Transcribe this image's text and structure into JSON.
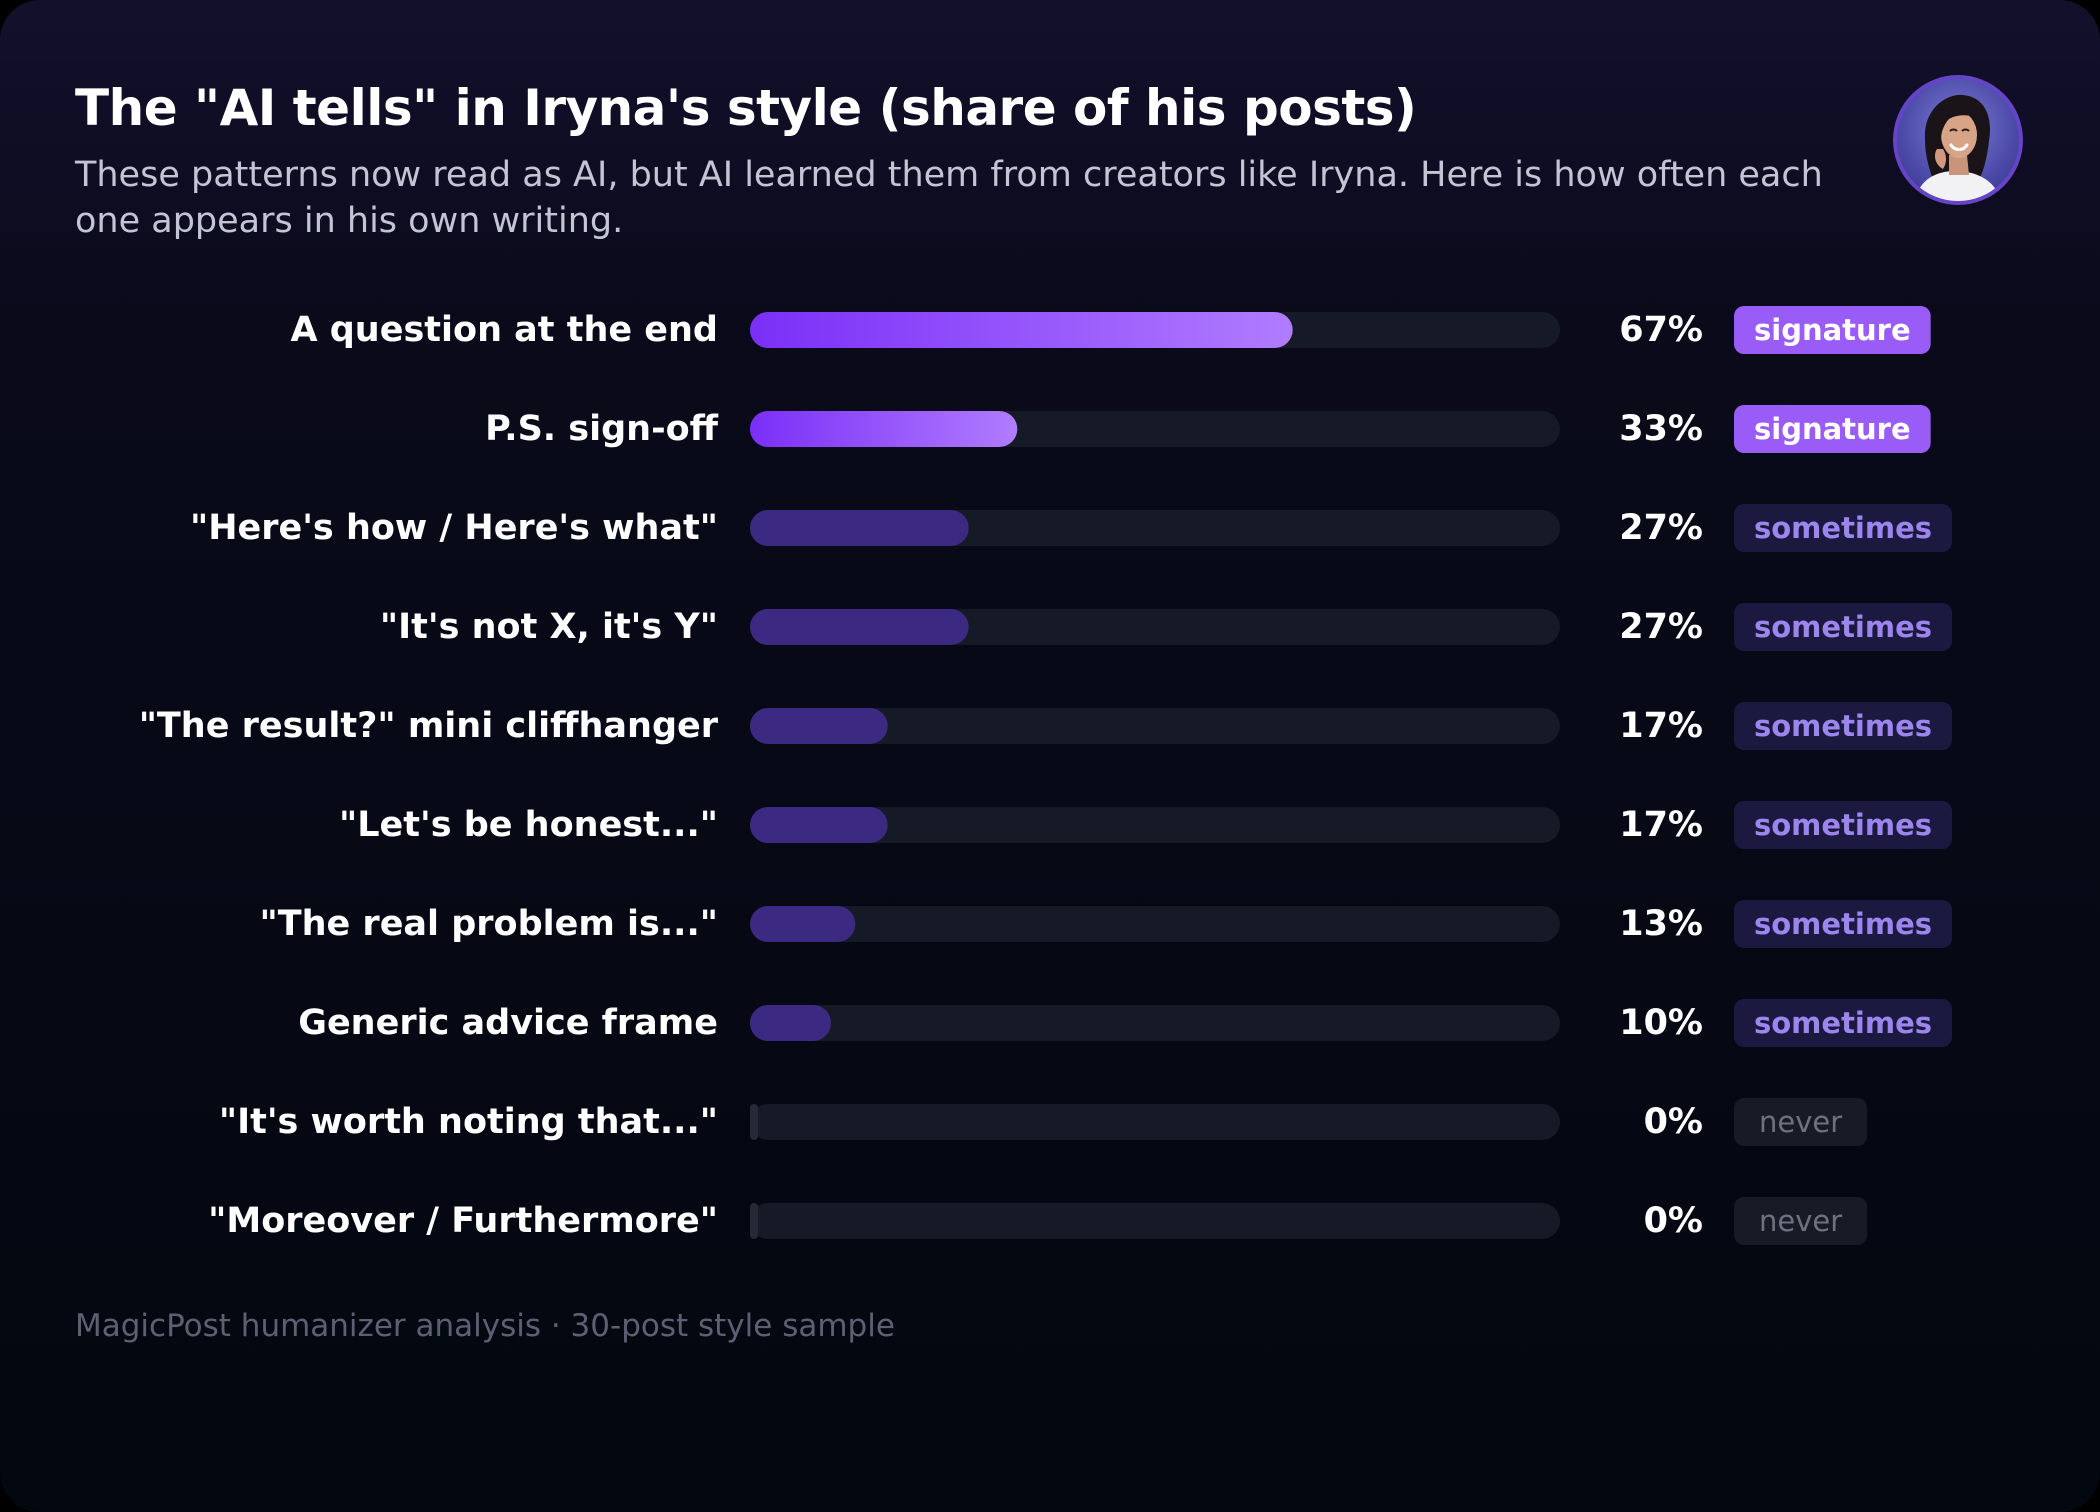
{
  "title": "The \"AI tells\" in Iryna's style (share of his posts)",
  "subtitle": "These patterns now read as AI, but AI learned them from creators like Iryna. Here is how often each one appears in his own writing.",
  "footer": "MagicPost humanizer analysis · 30-post style sample",
  "avatar_icon": "profile-photo-icon",
  "colors": {
    "signature_bar_start": "#7b2ff7",
    "signature_bar_end": "#b07cff",
    "sometimes_bar": "#3c2a82",
    "track": "#161a26",
    "signature_badge": "#9a5cf6",
    "sometimes_badge_bg": "#1b1940",
    "sometimes_badge_text": "#9c86ee",
    "never_badge_bg": "#181b25",
    "never_badge_text": "#6d7180"
  },
  "chart_data": {
    "type": "bar",
    "orientation": "horizontal",
    "value_unit": "%",
    "xlim": [
      0,
      100
    ],
    "grid": false,
    "title": "The \"AI tells\" in Iryna's style (share of his posts)",
    "categories": [
      "A question at the end",
      "P.S. sign-off",
      "\"Here's how / Here's what\"",
      "\"It's not X, it's Y\"",
      "\"The result?\" mini cliffhanger",
      "\"Let's be honest...\"",
      "\"The real problem is...\"",
      "Generic advice frame",
      "\"It's worth noting that...\"",
      "\"Moreover / Furthermore\""
    ],
    "values": [
      67,
      33,
      27,
      27,
      17,
      17,
      13,
      10,
      0,
      0
    ],
    "value_labels": [
      "67%",
      "33%",
      "27%",
      "27%",
      "17%",
      "17%",
      "13%",
      "10%",
      "0%",
      "0%"
    ],
    "tiers": [
      "signature",
      "signature",
      "sometimes",
      "sometimes",
      "sometimes",
      "sometimes",
      "sometimes",
      "sometimes",
      "never",
      "never"
    ]
  }
}
